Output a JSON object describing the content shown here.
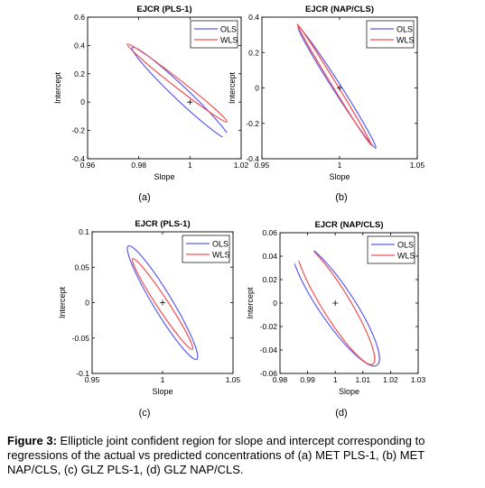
{
  "chart_data": [
    {
      "type": "line",
      "panel_label": "(a)",
      "title": "EJCR (PLS-1)",
      "xlabel": "Slope",
      "ylabel": "Intercept",
      "xlim": [
        0.96,
        1.02
      ],
      "ylim": [
        -0.4,
        0.6
      ],
      "xticks": [
        "0.96",
        "0.98",
        "1",
        "1.02"
      ],
      "yticks": [
        "-0.4",
        "-0.2",
        "0",
        "0.2",
        "0.4",
        "0.6"
      ],
      "xtick_values": [
        0.96,
        0.98,
        1.0,
        1.02
      ],
      "ytick_values": [
        -0.4,
        -0.2,
        0,
        0.2,
        0.4,
        0.6
      ],
      "center": {
        "x": 1.0,
        "y": 0.0
      },
      "legend_position": "top-right",
      "series": [
        {
          "name": "OLS",
          "color": "#5b5bf2",
          "endpoints": [
            [
              0.9775,
              0.385
            ],
            [
              1.0155,
              -0.265
            ]
          ],
          "half_width": 0.04
        },
        {
          "name": "WLS",
          "color": "#f25050",
          "endpoints": [
            [
              0.9755,
              0.41
            ],
            [
              1.0145,
              -0.14
            ]
          ],
          "half_width": 0.025
        }
      ]
    },
    {
      "type": "line",
      "panel_label": "(b)",
      "title": "EJCR (NAP/CLS)",
      "xlabel": "Slope",
      "ylabel": "Intercept",
      "xlim": [
        0.95,
        1.05
      ],
      "ylim": [
        -0.4,
        0.4
      ],
      "xticks": [
        "0.95",
        "1",
        "1.05"
      ],
      "yticks": [
        "-0.4",
        "-0.2",
        "0",
        "0.2",
        "0.4"
      ],
      "xtick_values": [
        0.95,
        1.0,
        1.05
      ],
      "ytick_values": [
        -0.4,
        -0.2,
        0,
        0.2,
        0.4
      ],
      "center": {
        "x": 1.0,
        "y": 0.0
      },
      "legend_position": "top-right",
      "series": [
        {
          "name": "OLS",
          "color": "#5b5bf2",
          "endpoints": [
            [
              0.9733,
              0.345
            ],
            [
              1.0233,
              -0.34
            ]
          ],
          "half_width": 0.022
        },
        {
          "name": "WLS",
          "color": "#f25050",
          "endpoints": [
            [
              0.9727,
              0.36
            ],
            [
              1.0206,
              -0.325
            ]
          ],
          "half_width": 0.012
        }
      ]
    },
    {
      "type": "line",
      "panel_label": "(c)",
      "title": "EJCR (PLS-1)",
      "xlabel": "Slope",
      "ylabel": "Intercept",
      "xlim": [
        0.95,
        1.05
      ],
      "ylim": [
        -0.1,
        0.1
      ],
      "xticks": [
        "0.95",
        "1",
        "1.05"
      ],
      "yticks": [
        "-0.1",
        "-0.05",
        "0",
        "0.05",
        "0.1"
      ],
      "xtick_values": [
        0.95,
        1.0,
        1.05
      ],
      "ytick_values": [
        -0.1,
        -0.05,
        0,
        0.05,
        0.1
      ],
      "center": {
        "x": 1.0,
        "y": 0.0
      },
      "legend_position": "top-right",
      "series": [
        {
          "name": "OLS",
          "color": "#5b5bf2",
          "endpoints": [
            [
              0.9757,
              0.08
            ],
            [
              1.0243,
              -0.08
            ]
          ],
          "half_width": 0.055
        },
        {
          "name": "WLS",
          "color": "#f25050",
          "endpoints": [
            [
              0.9788,
              0.062
            ],
            [
              1.0212,
              -0.066
            ]
          ],
          "half_width": 0.04
        }
      ]
    },
    {
      "type": "line",
      "panel_label": "(d)",
      "title": "EJCR (NAP/CLS)",
      "xlabel": "Slope",
      "ylabel": "Intercept",
      "xlim": [
        0.98,
        1.03
      ],
      "ylim": [
        -0.06,
        0.06
      ],
      "xticks": [
        "0.98",
        "0.99",
        "1",
        "1.01",
        "1.02",
        "1.03"
      ],
      "yticks": [
        "-0.06",
        "-0.04",
        "-0.02",
        "0",
        "0.02",
        "0.04",
        "0.06"
      ],
      "xtick_values": [
        0.98,
        0.99,
        1.0,
        1.01,
        1.02,
        1.03
      ],
      "ytick_values": [
        -0.06,
        -0.04,
        -0.02,
        0,
        0.02,
        0.04,
        0.06
      ],
      "center": {
        "x": 1.0,
        "y": 0.0
      },
      "legend_position": "top-right",
      "series": [
        {
          "name": "OLS",
          "color": "#5b5bf2",
          "endpoints": [
            [
              0.9849,
              0.053
            ],
            [
              1.0151,
              -0.053
            ]
          ],
          "half_width": 0.09
        },
        {
          "name": "WLS",
          "color": "#f25050",
          "endpoints": [
            [
              0.9864,
              0.052
            ],
            [
              1.0136,
              -0.052
            ]
          ],
          "half_width": 0.075
        }
      ]
    }
  ],
  "caption": {
    "label": "Figure 3:",
    "text": " Ellipticle joint confident region for slope and intercept corresponding to regressions of the actual vs predicted concentrations of (a) MET PLS-1, (b) MET NAP/CLS, (c) GLZ PLS-1, (d) GLZ NAP/CLS."
  }
}
